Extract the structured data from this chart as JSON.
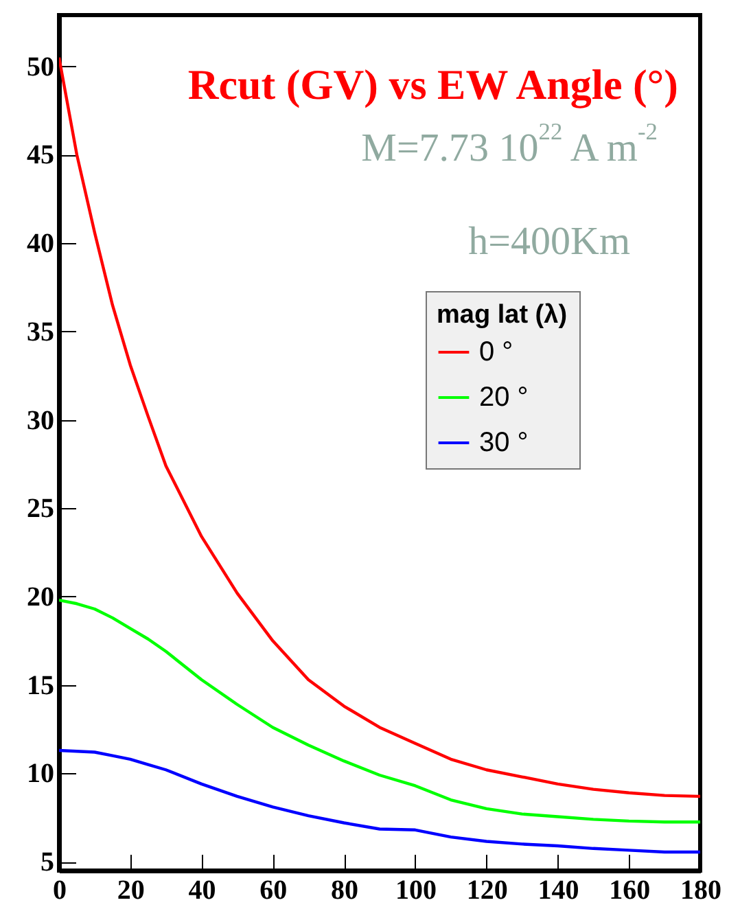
{
  "chart_data": {
    "type": "line",
    "title": "Rcut (GV) vs EW Angle (°)",
    "annotations": [
      "M=7.73 10$^{22}$ A m$^{-2}$",
      "h=400Km"
    ],
    "legend_title": "mag lat (λ)",
    "legend": "top right",
    "grid": false,
    "x": [
      0,
      5,
      10,
      15,
      20,
      25,
      30,
      40,
      50,
      60,
      70,
      80,
      90,
      100,
      110,
      120,
      130,
      140,
      150,
      160,
      170,
      180
    ],
    "series": [
      {
        "name": "0 °",
        "color": "#ff0000",
        "values": [
          50.5,
          45.0,
          40.6,
          36.5,
          33.1,
          30.2,
          27.4,
          23.4,
          20.2,
          17.5,
          15.3,
          13.8,
          12.6,
          11.7,
          10.8,
          10.2,
          9.8,
          9.4,
          9.1,
          8.9,
          8.75,
          8.7
        ]
      },
      {
        "name": "20 °",
        "color": "#00ff00",
        "values": [
          19.8,
          19.6,
          19.3,
          18.8,
          18.2,
          17.6,
          16.9,
          15.3,
          13.9,
          12.6,
          11.6,
          10.7,
          9.9,
          9.3,
          8.5,
          8.0,
          7.7,
          7.55,
          7.4,
          7.3,
          7.25,
          7.25
        ]
      },
      {
        "name": "30 °",
        "color": "#0000ff",
        "values": [
          11.3,
          11.25,
          11.2,
          11.0,
          10.8,
          10.5,
          10.2,
          9.4,
          8.7,
          8.1,
          7.6,
          7.2,
          6.85,
          6.8,
          6.4,
          6.15,
          6.0,
          5.9,
          5.75,
          5.65,
          5.55,
          5.55
        ]
      }
    ],
    "xlim": [
      0,
      180
    ],
    "xticks": [
      0,
      20,
      40,
      60,
      80,
      100,
      120,
      140,
      160,
      180
    ],
    "ylim": [
      4.5,
      52.9
    ],
    "yticks": [
      5,
      10,
      15,
      20,
      25,
      30,
      35,
      40,
      45,
      50
    ]
  }
}
